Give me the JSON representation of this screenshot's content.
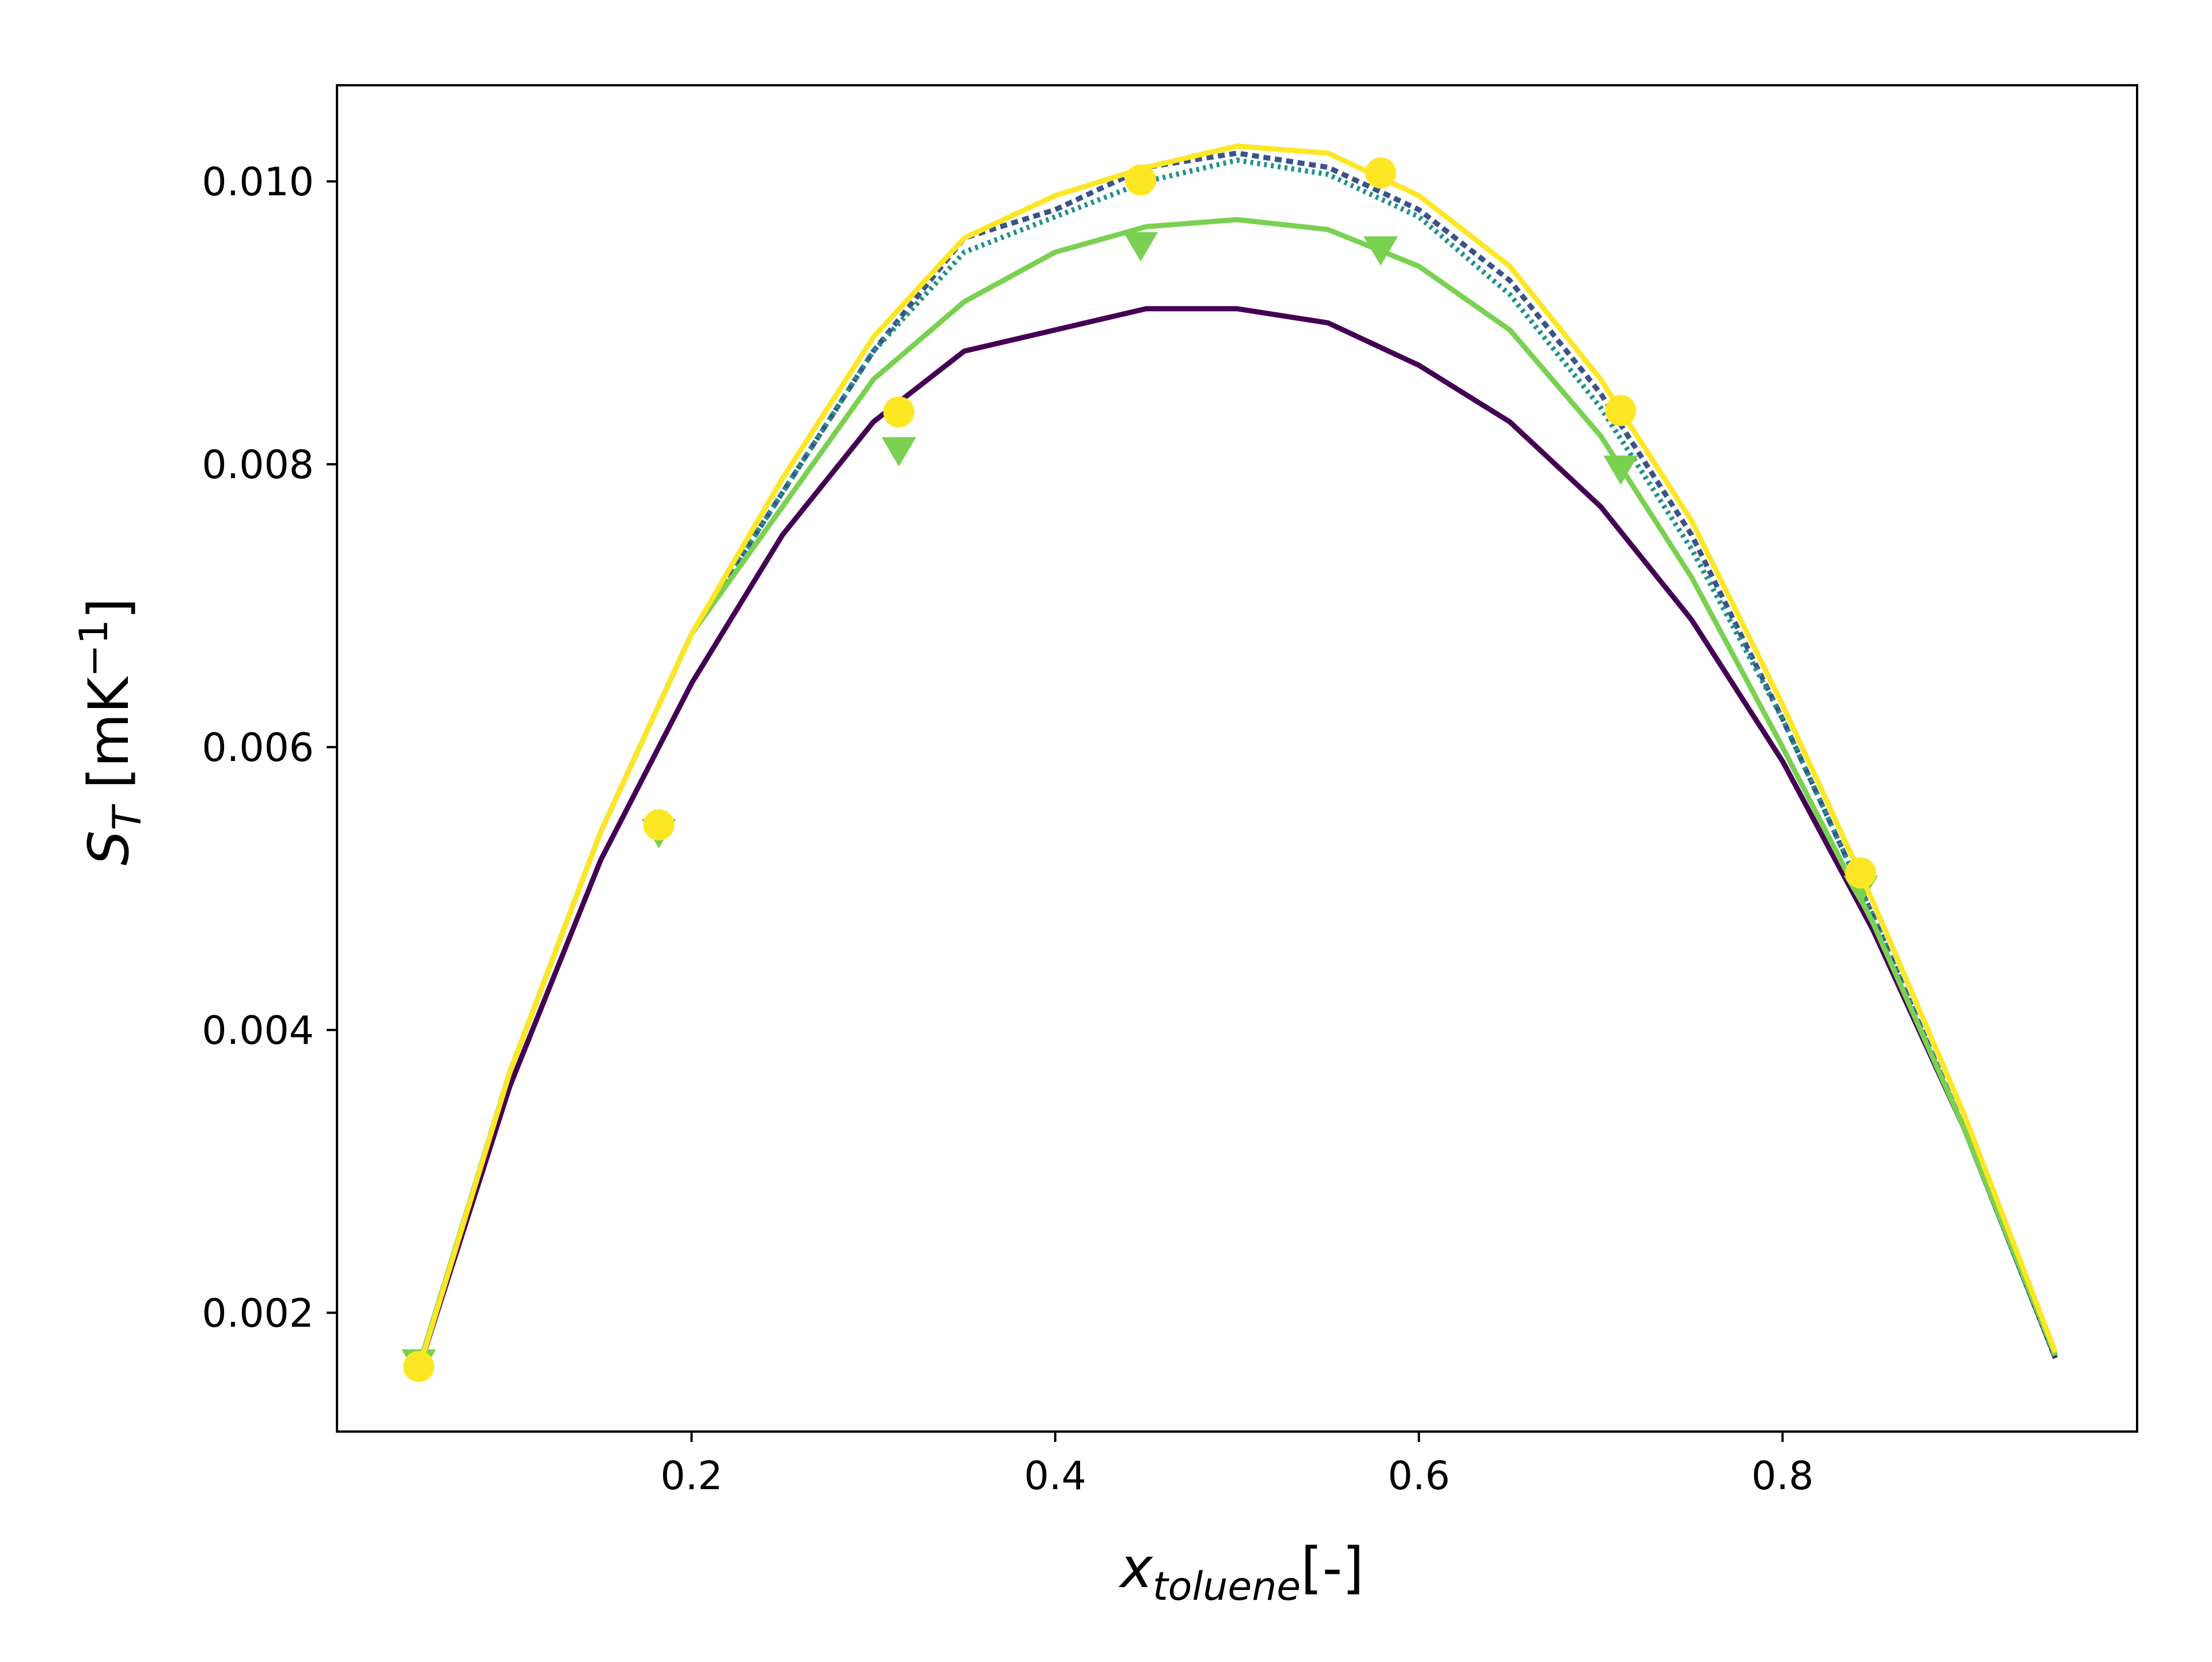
{
  "chart_data": {
    "type": "line",
    "xlabel": {
      "main": "x",
      "sub": "toluene",
      "suffix": "[-]"
    },
    "ylabel": {
      "main": "S",
      "sub": "T",
      "unit_open": " [mK",
      "unit_sup": "−1",
      "unit_close": "]"
    },
    "xlim": [
      0.005,
      0.995
    ],
    "ylim": [
      0.00116,
      0.01068
    ],
    "xticks": [
      {
        "value": 0.2,
        "label": "0.2"
      },
      {
        "value": 0.4,
        "label": "0.4"
      },
      {
        "value": 0.6,
        "label": "0.6"
      },
      {
        "value": 0.8,
        "label": "0.8"
      }
    ],
    "yticks": [
      {
        "value": 0.002,
        "label": "0.002"
      },
      {
        "value": 0.004,
        "label": "0.004"
      },
      {
        "value": 0.006,
        "label": "0.006"
      },
      {
        "value": 0.008,
        "label": "0.008"
      },
      {
        "value": 0.01,
        "label": "0.010"
      }
    ],
    "grid": false,
    "series": [
      {
        "color": "#440154",
        "dash": "none",
        "marker": "none",
        "x": [
          0.05,
          0.1,
          0.15,
          0.2,
          0.25,
          0.3,
          0.35,
          0.4,
          0.45,
          0.5,
          0.55,
          0.6,
          0.65,
          0.7,
          0.75,
          0.8,
          0.85,
          0.9,
          0.95
        ],
        "y": [
          0.0016,
          0.0036,
          0.0052,
          0.00645,
          0.0075,
          0.0083,
          0.0088,
          0.00895,
          0.0091,
          0.0091,
          0.009,
          0.0087,
          0.0083,
          0.0077,
          0.0069,
          0.0059,
          0.0047,
          0.0033,
          0.00168
        ]
      },
      {
        "color": "#3b528b",
        "dash": "12 8",
        "marker": "none",
        "x": [
          0.05,
          0.1,
          0.15,
          0.2,
          0.25,
          0.3,
          0.35,
          0.4,
          0.45,
          0.5,
          0.55,
          0.6,
          0.65,
          0.7,
          0.75,
          0.8,
          0.85,
          0.9,
          0.95
        ],
        "y": [
          0.00162,
          0.0037,
          0.0054,
          0.0068,
          0.0078,
          0.0088,
          0.0096,
          0.0098,
          0.0101,
          0.0102,
          0.0101,
          0.0098,
          0.0093,
          0.0085,
          0.0075,
          0.0062,
          0.0048,
          0.0033,
          0.00168
        ]
      },
      {
        "color": "#21918c",
        "dash": "5 7",
        "marker": "none",
        "x": [
          0.05,
          0.1,
          0.15,
          0.2,
          0.25,
          0.3,
          0.35,
          0.4,
          0.45,
          0.5,
          0.55,
          0.6,
          0.65,
          0.7,
          0.75,
          0.8,
          0.85,
          0.9,
          0.95
        ],
        "y": [
          0.00162,
          0.0037,
          0.0054,
          0.0068,
          0.0078,
          0.0088,
          0.0095,
          0.00975,
          0.01,
          0.01015,
          0.01005,
          0.00975,
          0.0092,
          0.0084,
          0.0074,
          0.0062,
          0.0048,
          0.0033,
          0.00168
        ]
      },
      {
        "color": "#7ad151",
        "dash": "none",
        "marker": "triangle",
        "x": [
          0.05,
          0.1,
          0.15,
          0.2,
          0.25,
          0.3,
          0.35,
          0.4,
          0.45,
          0.5,
          0.55,
          0.6,
          0.65,
          0.7,
          0.75,
          0.8,
          0.85,
          0.9,
          0.95
        ],
        "y": [
          0.00162,
          0.0037,
          0.0054,
          0.0068,
          0.0077,
          0.0086,
          0.00915,
          0.0095,
          0.00968,
          0.00973,
          0.00966,
          0.0094,
          0.00895,
          0.0082,
          0.0072,
          0.006,
          0.00475,
          0.0033,
          0.0017
        ],
        "marker_x": [
          0.05,
          0.182,
          0.314,
          0.447,
          0.579,
          0.711,
          0.843
        ],
        "marker_y": [
          0.00165,
          0.0054,
          0.0081,
          0.00955,
          0.00952,
          0.00797,
          0.005
        ]
      },
      {
        "color": "#fde725",
        "dash": "none",
        "marker": "circle",
        "x": [
          0.05,
          0.1,
          0.15,
          0.2,
          0.25,
          0.3,
          0.35,
          0.4,
          0.45,
          0.5,
          0.55,
          0.6,
          0.65,
          0.7,
          0.75,
          0.8,
          0.85,
          0.9,
          0.95
        ],
        "y": [
          0.0016,
          0.0037,
          0.0054,
          0.0068,
          0.0079,
          0.0089,
          0.0096,
          0.0099,
          0.0101,
          0.01025,
          0.0102,
          0.0099,
          0.0094,
          0.0086,
          0.0076,
          0.0063,
          0.0049,
          0.0034,
          0.00172
        ],
        "marker_x": [
          0.05,
          0.182,
          0.314,
          0.447,
          0.579,
          0.711,
          0.843
        ],
        "marker_y": [
          0.00162,
          0.00545,
          0.00837,
          0.01001,
          0.01006,
          0.00838,
          0.00511
        ]
      }
    ]
  }
}
